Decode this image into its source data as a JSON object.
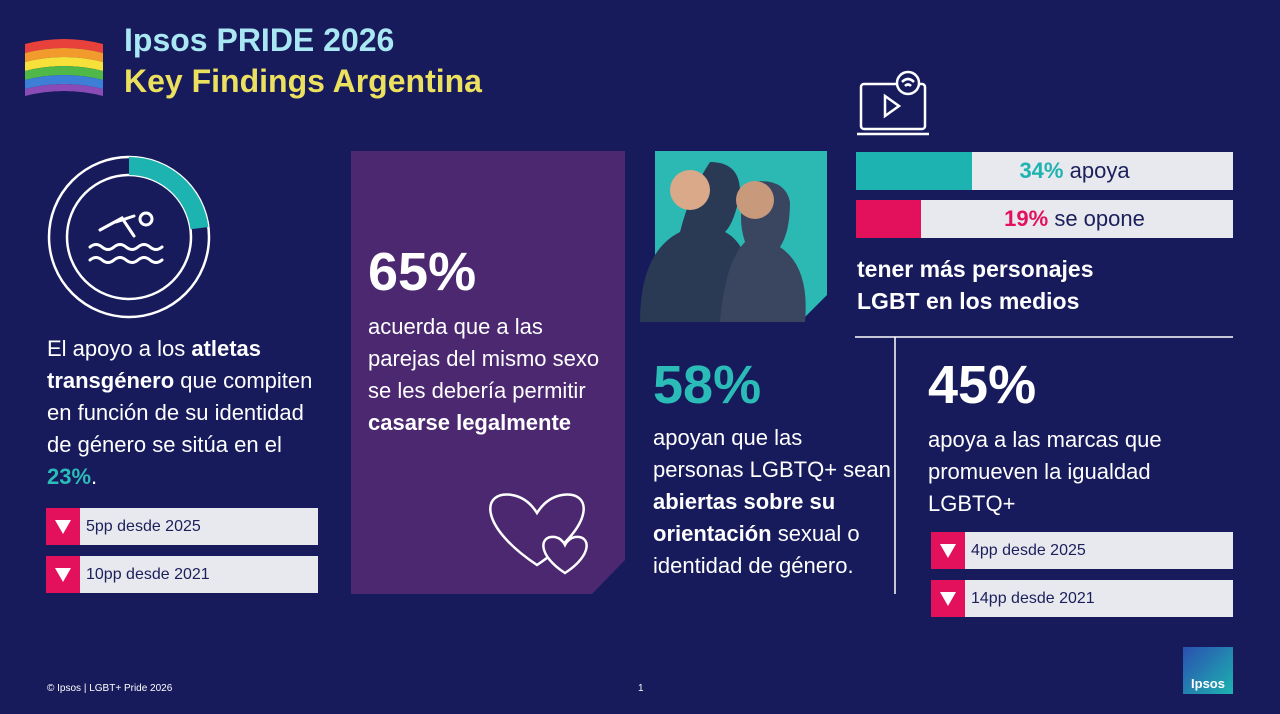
{
  "header": {
    "title": "Ipsos PRIDE 2026",
    "subtitle": "Key Findings Argentina"
  },
  "athletes": {
    "ring_value": 23,
    "text": [
      {
        "text": "El apoyo a los "
      },
      {
        "text": "atletas transgénero",
        "bold": true
      },
      {
        "text": " que compiten en función de su identidad de género se sitúa en el "
      },
      {
        "text": "23%",
        "bold": true,
        "highlight": true
      },
      {
        "text": "."
      }
    ],
    "changes": [
      "5pp desde 2025",
      "10pp desde 2021"
    ]
  },
  "marriage": {
    "stat": "65%",
    "text": [
      {
        "text": "acuerda que a las parejas del mismo sexo se les debería permitir "
      },
      {
        "text": "casarse legalmente",
        "bold": true
      }
    ]
  },
  "media": {
    "bars": [
      {
        "value": 34,
        "label": "34%",
        "text": "apoya",
        "color": "#1db3b0"
      },
      {
        "value": 19,
        "label": "19%",
        "text": "se opone",
        "color": "#e3105c"
      }
    ],
    "caption": "tener más personajes LGBT en los medios"
  },
  "openness": {
    "stat": "58%",
    "text": [
      {
        "text": "apoyan que las personas LGBTQ+ sean "
      },
      {
        "text": "abiertas sobre su orientación",
        "bold": true
      },
      {
        "text": " sexual o identidad de género."
      }
    ]
  },
  "brands": {
    "stat": "45%",
    "text": "apoya a las marcas que promueven la igualdad LGBTQ+",
    "changes": [
      "4pp desde 2025",
      "14pp desde 2021"
    ]
  },
  "footer": {
    "copyright": "© Ipsos | LGBT+ Pride 2026",
    "page": "1",
    "logo": "Ipsos"
  }
}
